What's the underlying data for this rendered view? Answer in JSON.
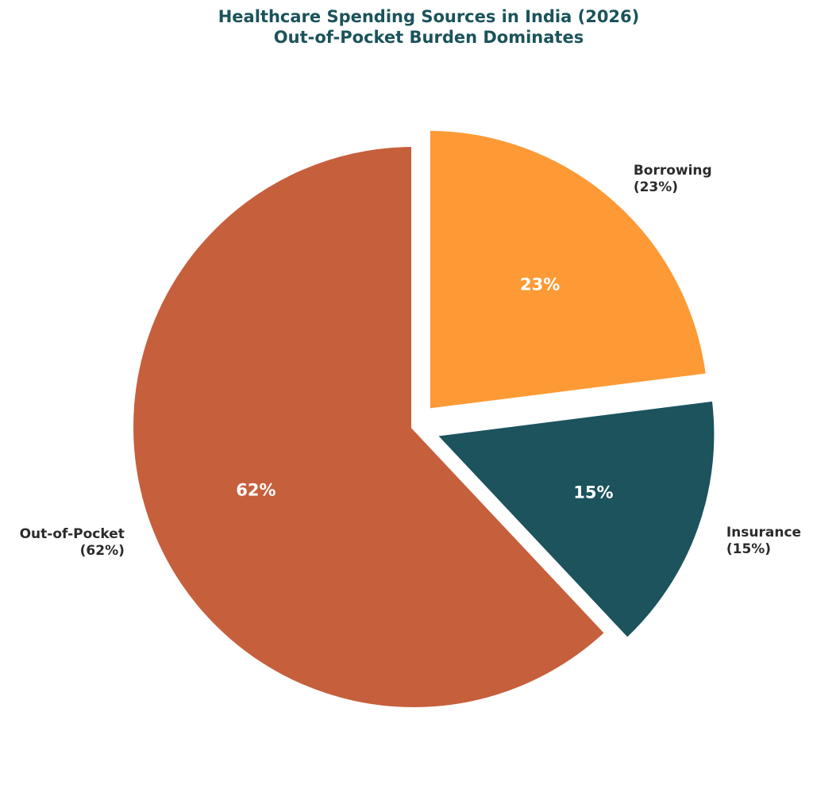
{
  "chart_data": {
    "type": "pie",
    "title": "Healthcare Spending Sources in India (2026)",
    "subtitle": "Out-of-Pocket Burden Dominates",
    "start_angle_deg": 90,
    "direction": "counterclockwise",
    "slices": [
      {
        "name": "Out-of-Pocket",
        "value": 62,
        "pct_label": "62%",
        "outer_label": "Out-of-Pocket",
        "outer_pct": "(62%)",
        "color": "#c65f3c",
        "exploded": false
      },
      {
        "name": "Insurance",
        "value": 15,
        "pct_label": "15%",
        "outer_label": "Insurance",
        "outer_pct": "(15%)",
        "color": "#1c535d",
        "exploded": true
      },
      {
        "name": "Borrowing",
        "value": 23,
        "pct_label": "23%",
        "outer_label": "Borrowing",
        "outer_pct": "(23%)",
        "color": "#fd9a36",
        "exploded": true
      }
    ]
  }
}
